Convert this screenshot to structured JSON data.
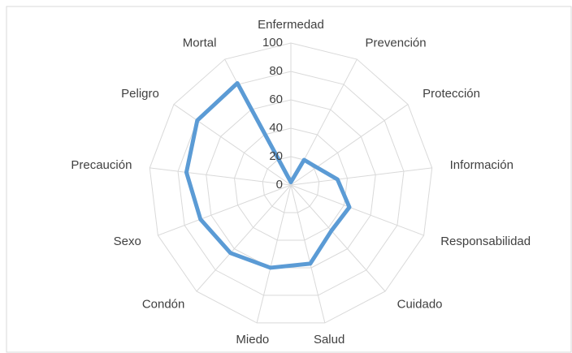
{
  "chart_data": {
    "type": "radar",
    "categories": [
      "Enfermedad",
      "Prevención",
      "Protección",
      "Información",
      "Responsabilidad",
      "Cuidado",
      "Salud",
      "Miedo",
      "Condón",
      "Sexo",
      "Precaución",
      "Peligro",
      "Mortal"
    ],
    "values": [
      2,
      20,
      22,
      33,
      44,
      43,
      57,
      60,
      64,
      68,
      74,
      80,
      81
    ],
    "color": "#5b9bd5",
    "ylim": [
      0,
      100
    ],
    "yticks": [
      0,
      20,
      40,
      60,
      80,
      100
    ],
    "grid": true
  }
}
